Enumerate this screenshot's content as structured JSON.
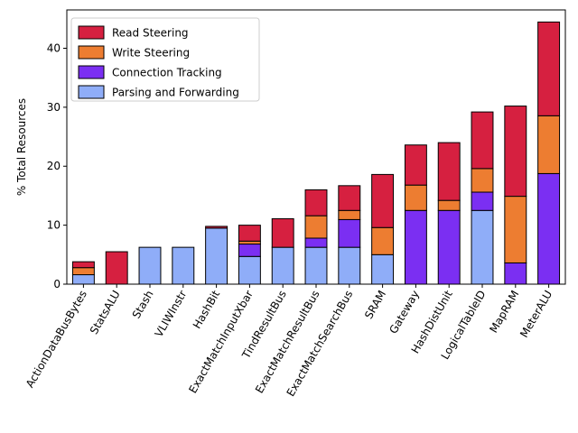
{
  "chart_data": {
    "type": "bar",
    "stacked": true,
    "ylabel": "% Total Resources",
    "xlabel": "",
    "ylim": [
      0,
      46.5
    ],
    "yticks": [
      0,
      10,
      20,
      30,
      40
    ],
    "grid": false,
    "legend_position": "top-left",
    "categories": [
      "ActionDataBusBytes",
      "StatsALU",
      "Stash",
      "VLIWInstr",
      "HashBit",
      "ExactMatchInputXbar",
      "TindResultBus",
      "ExactMatchResultBus",
      "ExactMatchSearchBus",
      "SRAM",
      "Gateway",
      "HashDistUnit",
      "LogicalTableID",
      "MapRAM",
      "MeterALU"
    ],
    "series": [
      {
        "name": "Parsing and Forwarding",
        "color": "#8fadf8",
        "values": [
          1.6,
          0,
          6.25,
          6.25,
          9.5,
          4.7,
          6.25,
          6.25,
          6.25,
          5.0,
          0,
          0,
          12.5,
          0,
          0
        ]
      },
      {
        "name": "Connection Tracking",
        "color": "#7b2ff2",
        "values": [
          0,
          0,
          0,
          0,
          0,
          2.1,
          0,
          1.55,
          4.7,
          0,
          12.5,
          12.5,
          3.1,
          3.6,
          18.75
        ]
      },
      {
        "name": "Write Steering",
        "color": "#ed7d31",
        "values": [
          1.2,
          0,
          0,
          0,
          0,
          0.5,
          0,
          3.8,
          1.55,
          4.6,
          4.3,
          1.7,
          4.0,
          11.3,
          9.8
        ]
      },
      {
        "name": "Read Steering",
        "color": "#d62040",
        "values": [
          1.0,
          5.5,
          0,
          0,
          0.3,
          2.7,
          4.85,
          4.4,
          4.2,
          9.0,
          6.8,
          9.8,
          9.6,
          15.3,
          15.9
        ]
      }
    ],
    "legend_order": [
      "Read Steering",
      "Write Steering",
      "Connection Tracking",
      "Parsing and Forwarding"
    ]
  }
}
